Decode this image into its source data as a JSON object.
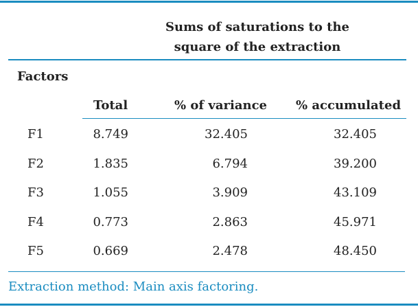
{
  "table": {
    "group_header": [
      "Sums of saturations to the",
      "square of the extraction"
    ],
    "row_header": "Factors",
    "columns": [
      "Total",
      "% of variance",
      "% accumulated"
    ],
    "rows": [
      [
        "F1",
        "8.749",
        "32.405",
        "32.405"
      ],
      [
        "F2",
        "1.835",
        "6.794",
        "39.200"
      ],
      [
        "F3",
        "1.055",
        "3.909",
        "43.109"
      ],
      [
        "F4",
        "0.773",
        "2.863",
        "45.971"
      ],
      [
        "F5",
        "0.669",
        "2.478",
        "48.450"
      ]
    ],
    "footnote": "Extraction method: Main axis factoring."
  }
}
